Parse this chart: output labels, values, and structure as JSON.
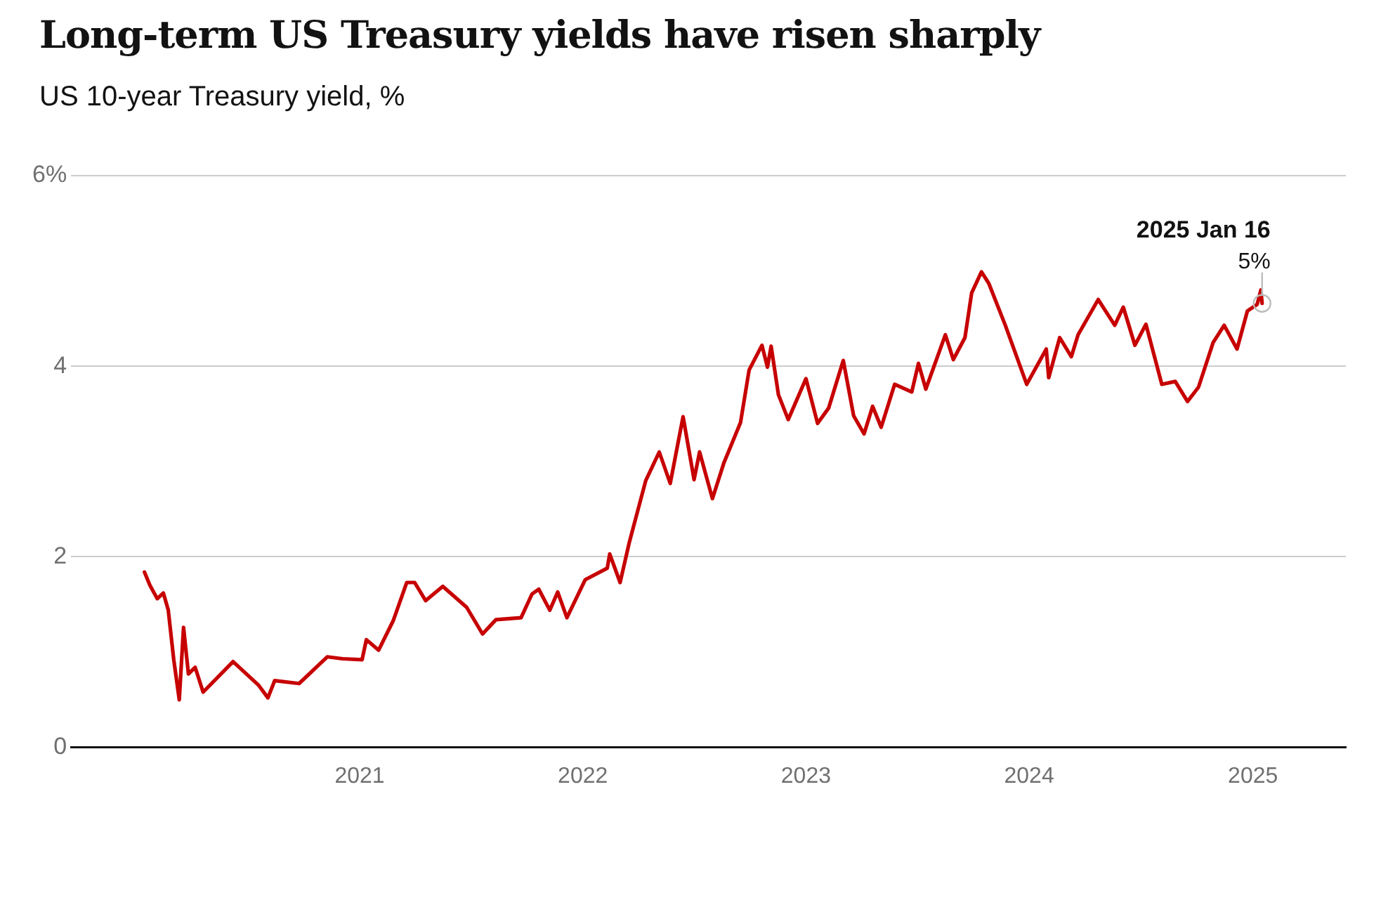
{
  "chart_data": {
    "type": "line",
    "title": "Long-term US Treasury yields have risen sharply",
    "subtitle": "US 10-year Treasury yield, %",
    "x": [
      "2020-01-15",
      "2020-01-24",
      "2020-02-05",
      "2020-02-15",
      "2020-02-23",
      "2020-03-03",
      "2020-03-12",
      "2020-03-19",
      "2020-03-27",
      "2020-04-07",
      "2020-04-20",
      "2020-06-08",
      "2020-07-20",
      "2020-08-04",
      "2020-08-15",
      "2020-09-24",
      "2020-11-09",
      "2020-12-04",
      "2021-01-05",
      "2021-01-12",
      "2021-02-01",
      "2021-02-25",
      "2021-03-19",
      "2021-04-01",
      "2021-04-19",
      "2021-05-17",
      "2021-06-25",
      "2021-07-21",
      "2021-08-12",
      "2021-09-22",
      "2021-10-10",
      "2021-10-21",
      "2021-11-08",
      "2021-11-21",
      "2021-12-06",
      "2022-01-05",
      "2022-02-10",
      "2022-02-14",
      "2022-03-03",
      "2022-03-18",
      "2022-04-14",
      "2022-05-06",
      "2022-05-24",
      "2022-06-14",
      "2022-07-02",
      "2022-07-11",
      "2022-08-01",
      "2022-08-20",
      "2022-09-16",
      "2022-09-30",
      "2022-10-21",
      "2022-10-30",
      "2022-11-05",
      "2022-11-17",
      "2022-12-03",
      "2023-01-01",
      "2023-01-20",
      "2023-02-07",
      "2023-03-03",
      "2023-03-20",
      "2023-04-06",
      "2023-04-20",
      "2023-05-04",
      "2023-05-26",
      "2023-06-23",
      "2023-07-04",
      "2023-07-16",
      "2023-08-17",
      "2023-08-30",
      "2023-09-18",
      "2023-09-29",
      "2023-10-15",
      "2023-10-27",
      "2023-11-23",
      "2023-12-28",
      "2024-01-29",
      "2024-02-02",
      "2024-02-20",
      "2024-03-10",
      "2024-03-21",
      "2024-04-23",
      "2024-05-20",
      "2024-06-03",
      "2024-06-22",
      "2024-07-10",
      "2024-08-05",
      "2024-08-27",
      "2024-09-16",
      "2024-10-04",
      "2024-10-28",
      "2024-11-15",
      "2024-12-06",
      "2024-12-23",
      "2025-01-08",
      "2025-01-14",
      "2025-01-16"
    ],
    "series": [
      {
        "color": "#c70000",
        "values": [
          1.84,
          1.7,
          1.56,
          1.62,
          1.44,
          0.92,
          0.5,
          1.26,
          0.77,
          0.84,
          0.58,
          0.9,
          0.65,
          0.52,
          0.7,
          0.67,
          0.95,
          0.93,
          0.92,
          1.13,
          1.02,
          1.33,
          1.73,
          1.73,
          1.54,
          1.69,
          1.47,
          1.19,
          1.34,
          1.36,
          1.61,
          1.66,
          1.44,
          1.63,
          1.36,
          1.76,
          1.88,
          2.03,
          1.73,
          2.15,
          2.8,
          3.1,
          2.77,
          3.47,
          2.81,
          3.1,
          2.61,
          2.99,
          3.41,
          3.96,
          4.22,
          3.99,
          4.21,
          3.7,
          3.44,
          3.87,
          3.4,
          3.56,
          4.06,
          3.48,
          3.29,
          3.58,
          3.36,
          3.81,
          3.73,
          4.03,
          3.76,
          4.33,
          4.07,
          4.3,
          4.77,
          4.99,
          4.87,
          4.43,
          3.81,
          4.18,
          3.88,
          4.3,
          4.1,
          4.33,
          4.7,
          4.43,
          4.62,
          4.22,
          4.44,
          3.81,
          3.84,
          3.63,
          3.78,
          4.25,
          4.43,
          4.18,
          4.58,
          4.65,
          4.8,
          4.66
        ]
      }
    ],
    "xlim": [
      "2019-09-17",
      "2025-06-02"
    ],
    "xticks": [
      "2021",
      "2022",
      "2023",
      "2024",
      "2025"
    ],
    "ylim": [
      0,
      6
    ],
    "yticks": [
      0,
      2,
      4,
      {
        "value": 6,
        "label": "6%"
      }
    ],
    "grid": "y",
    "legend": false,
    "marker": "none",
    "line_style": "solid",
    "annotations": [
      {
        "text": "2025 Jan 16",
        "x": "2025-01-16",
        "y": 4.66
      },
      {
        "text": "5%",
        "x": "2025-01-16",
        "y": 4.66
      }
    ]
  }
}
